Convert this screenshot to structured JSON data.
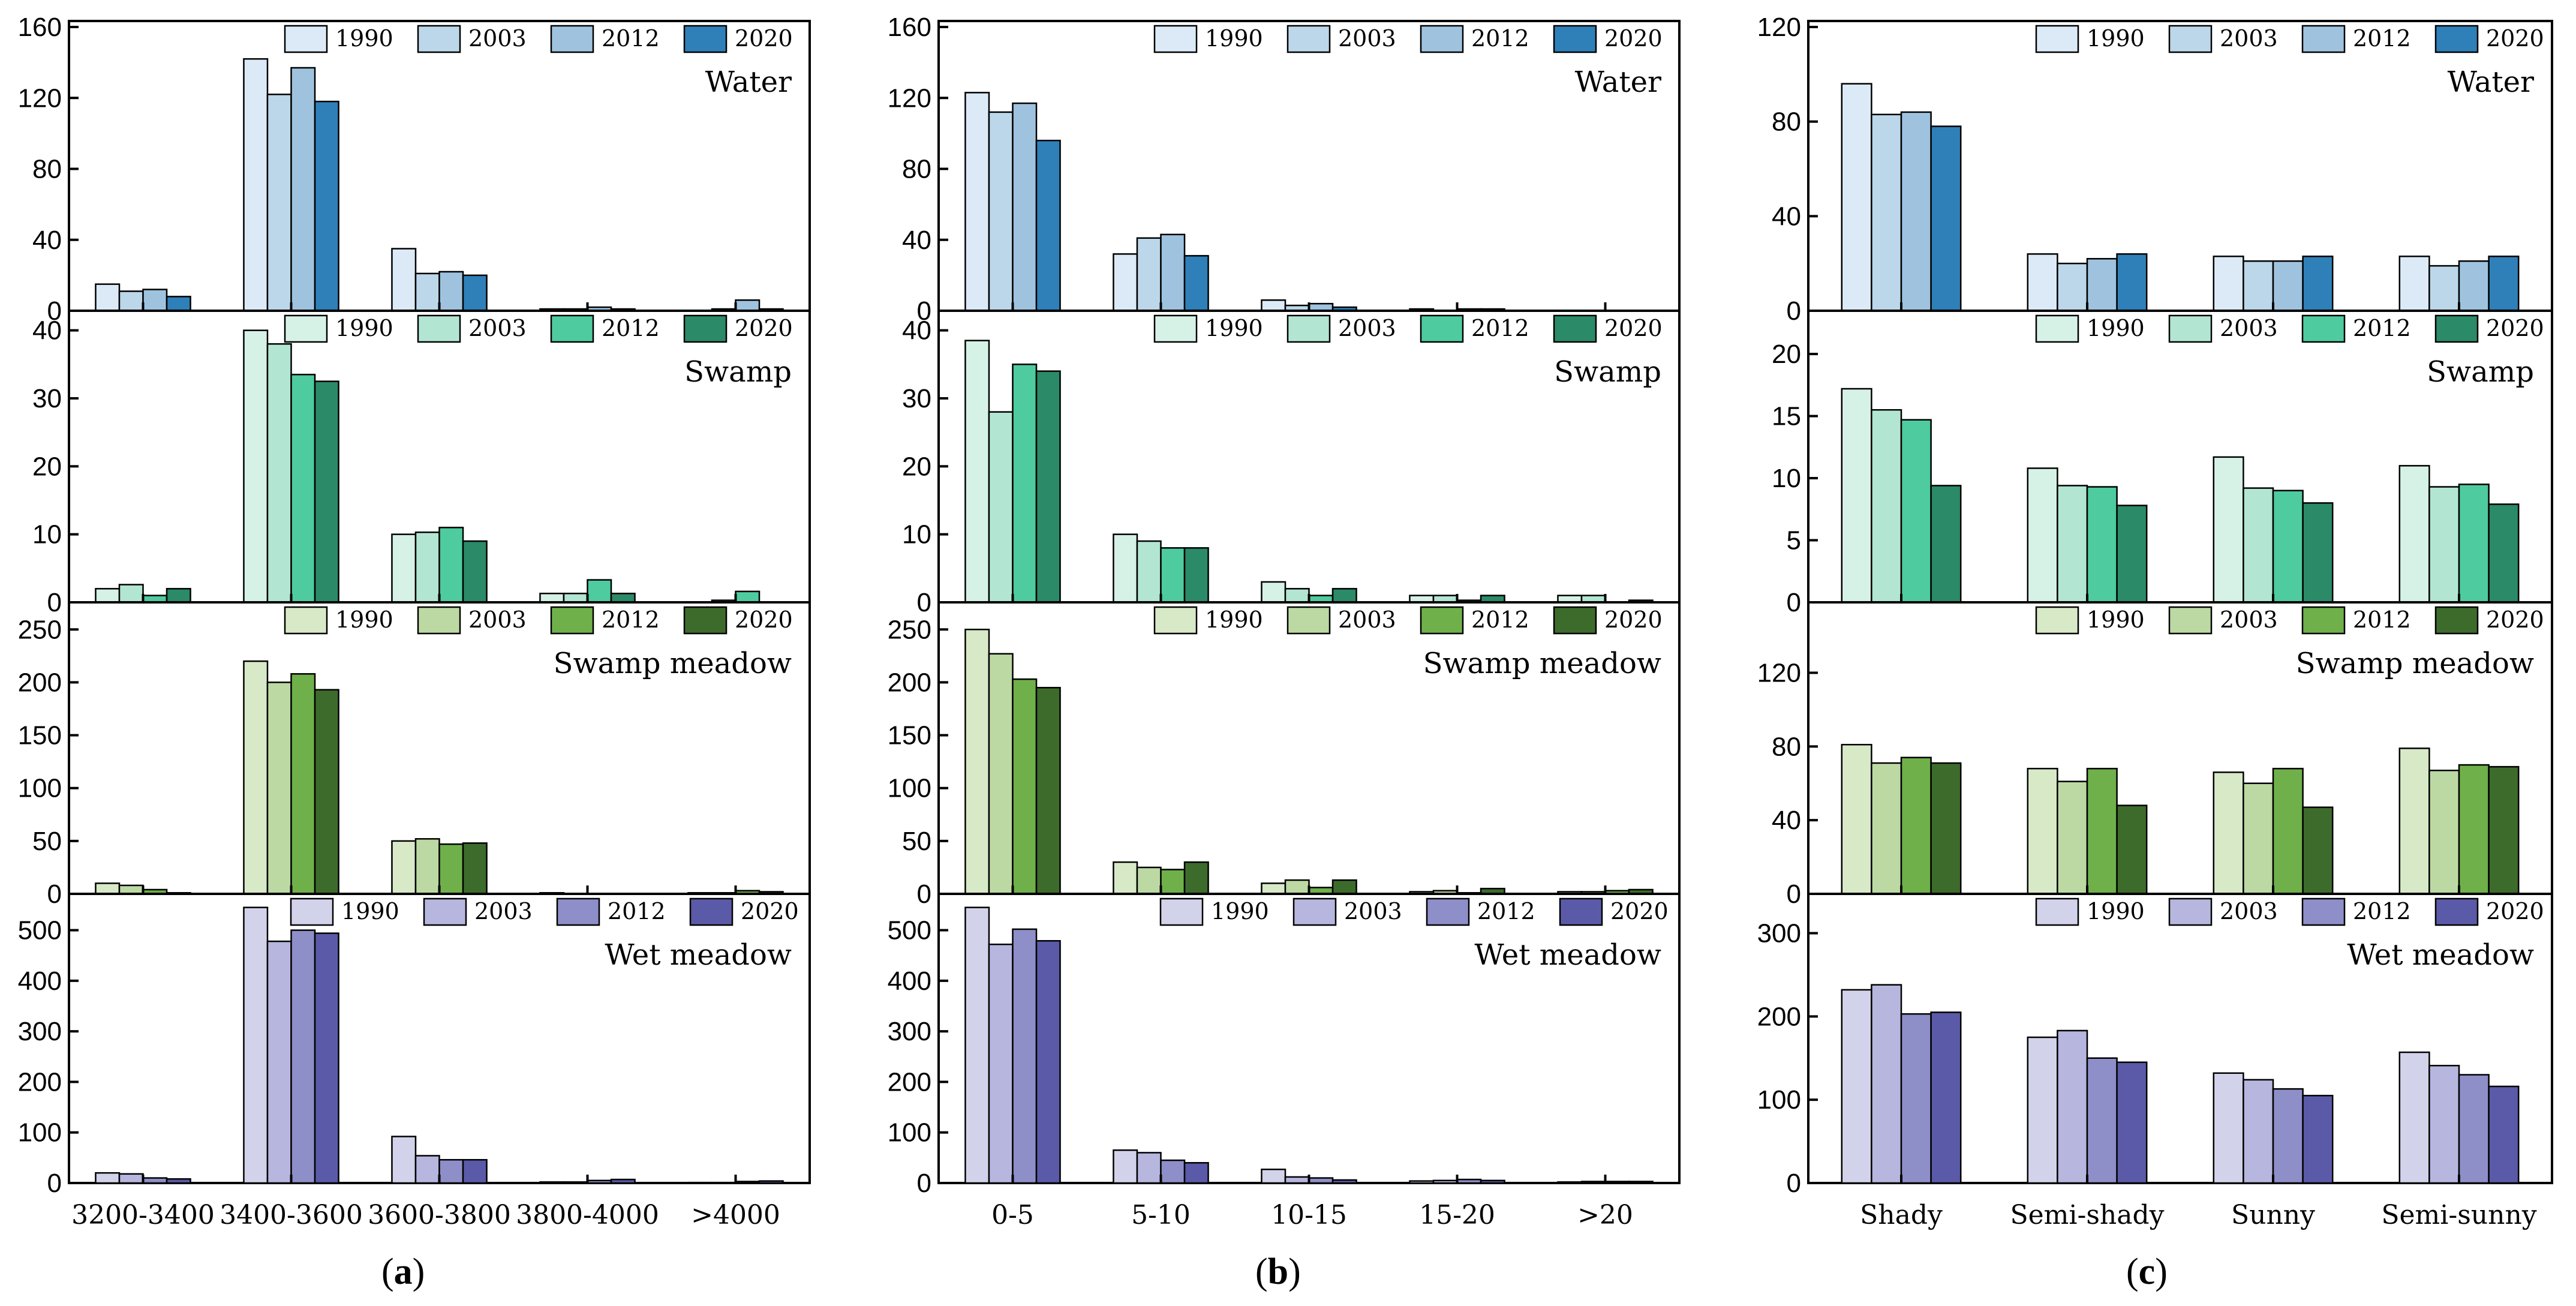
{
  "figure_labels": {
    "a": "a",
    "b": "b",
    "c": "c"
  },
  "colors": {
    "Water": [
      "#dbeaf6",
      "#bcd7ea",
      "#9fc3df",
      "#2f80b8"
    ],
    "Swamp": [
      "#d6f1e6",
      "#b2e6d2",
      "#4ecb9f",
      "#2b8a67"
    ],
    "Swamp meadow": [
      "#d7e9c7",
      "#bcd9a4",
      "#6fb04a",
      "#3d6b2c"
    ],
    "Wet meadow": [
      "#d2d2ea",
      "#b6b6de",
      "#8e8ec8",
      "#5a5aa8"
    ]
  },
  "chart_data": [
    {
      "type": "bar",
      "panel": "a",
      "title": "Water",
      "categories": [
        "3200-3400",
        "3400-3600",
        "3600-3800",
        "3800-4000",
        ">4000"
      ],
      "ylim": [
        0,
        160
      ],
      "yticks": [
        0,
        40,
        80,
        120,
        160
      ],
      "series": [
        {
          "name": "1990",
          "values": [
            15,
            142,
            35,
            1,
            0
          ]
        },
        {
          "name": "2003",
          "values": [
            11,
            122,
            21,
            1,
            1
          ]
        },
        {
          "name": "2012",
          "values": [
            12,
            137,
            22,
            2,
            6
          ]
        },
        {
          "name": "2020",
          "values": [
            8,
            118,
            20,
            1,
            1
          ]
        }
      ]
    },
    {
      "type": "bar",
      "panel": "a",
      "title": "Swamp",
      "categories": [
        "3200-3400",
        "3400-3600",
        "3600-3800",
        "3800-4000",
        ">4000"
      ],
      "ylim": [
        0,
        42
      ],
      "yticks": [
        0,
        10,
        20,
        30,
        40
      ],
      "series": [
        {
          "name": "1990",
          "values": [
            2,
            40,
            10,
            1.3,
            0
          ]
        },
        {
          "name": "2003",
          "values": [
            2.6,
            38,
            10.3,
            1.3,
            0.3
          ]
        },
        {
          "name": "2012",
          "values": [
            1,
            33.5,
            11,
            3.3,
            1.6
          ]
        },
        {
          "name": "2020",
          "values": [
            2,
            32.5,
            9,
            1.3,
            0
          ]
        }
      ]
    },
    {
      "type": "bar",
      "panel": "a",
      "title": "Swamp meadow",
      "categories": [
        "3200-3400",
        "3400-3600",
        "3600-3800",
        "3800-4000",
        ">4000"
      ],
      "ylim": [
        0,
        270
      ],
      "yticks": [
        0,
        50,
        100,
        150,
        200,
        250
      ],
      "series": [
        {
          "name": "1990",
          "values": [
            10,
            220,
            50,
            1,
            1
          ]
        },
        {
          "name": "2003",
          "values": [
            8,
            200,
            52,
            0,
            1
          ]
        },
        {
          "name": "2012",
          "values": [
            4,
            208,
            47,
            0,
            3
          ]
        },
        {
          "name": "2020",
          "values": [
            1,
            193,
            48,
            0,
            2
          ]
        }
      ]
    },
    {
      "type": "bar",
      "panel": "a",
      "title": "Wet meadow",
      "categories": [
        "3200-3400",
        "3400-3600",
        "3600-3800",
        "3800-4000",
        ">4000"
      ],
      "ylim": [
        0,
        560
      ],
      "yticks": [
        0,
        100,
        200,
        300,
        400,
        500
      ],
      "series": [
        {
          "name": "1990",
          "values": [
            20,
            545,
            92,
            2,
            1
          ]
        },
        {
          "name": "2003",
          "values": [
            18,
            478,
            54,
            2,
            1
          ]
        },
        {
          "name": "2012",
          "values": [
            10,
            500,
            46,
            5,
            3
          ]
        },
        {
          "name": "2020",
          "values": [
            8,
            494,
            46,
            7,
            4
          ]
        }
      ]
    },
    {
      "type": "bar",
      "panel": "b",
      "title": "Water",
      "categories": [
        "0-5",
        "5-10",
        "10-15",
        "15-20",
        ">20"
      ],
      "ylim": [
        0,
        160
      ],
      "yticks": [
        0,
        40,
        80,
        120,
        160
      ],
      "series": [
        {
          "name": "1990",
          "values": [
            123,
            32,
            6,
            1,
            0
          ]
        },
        {
          "name": "2003",
          "values": [
            112,
            41,
            3,
            0,
            0
          ]
        },
        {
          "name": "2012",
          "values": [
            117,
            43,
            4,
            1,
            0
          ]
        },
        {
          "name": "2020",
          "values": [
            96,
            31,
            2,
            1,
            0
          ]
        }
      ]
    },
    {
      "type": "bar",
      "panel": "b",
      "title": "Swamp",
      "categories": [
        "0-5",
        "5-10",
        "10-15",
        "15-20",
        ">20"
      ],
      "ylim": [
        0,
        42
      ],
      "yticks": [
        0,
        10,
        20,
        30,
        40
      ],
      "series": [
        {
          "name": "1990",
          "values": [
            38.5,
            10,
            3,
            1,
            1
          ]
        },
        {
          "name": "2003",
          "values": [
            28,
            9,
            2,
            1,
            1
          ]
        },
        {
          "name": "2012",
          "values": [
            35,
            8,
            1,
            0.3,
            0
          ]
        },
        {
          "name": "2020",
          "values": [
            34,
            8,
            2,
            1,
            0.3
          ]
        }
      ]
    },
    {
      "type": "bar",
      "panel": "b",
      "title": "Swamp meadow",
      "categories": [
        "0-5",
        "5-10",
        "10-15",
        "15-20",
        ">20"
      ],
      "ylim": [
        0,
        270
      ],
      "yticks": [
        0,
        50,
        100,
        150,
        200,
        250
      ],
      "series": [
        {
          "name": "1990",
          "values": [
            250,
            30,
            10,
            2,
            2
          ]
        },
        {
          "name": "2003",
          "values": [
            227,
            25,
            13,
            3,
            2
          ]
        },
        {
          "name": "2012",
          "values": [
            203,
            23,
            6,
            1,
            3
          ]
        },
        {
          "name": "2020",
          "values": [
            195,
            30,
            13,
            5,
            4
          ]
        }
      ]
    },
    {
      "type": "bar",
      "panel": "b",
      "title": "Wet meadow",
      "categories": [
        "0-5",
        "5-10",
        "10-15",
        "15-20",
        ">20"
      ],
      "ylim": [
        0,
        560
      ],
      "yticks": [
        0,
        100,
        200,
        300,
        400,
        500
      ],
      "series": [
        {
          "name": "1990",
          "values": [
            545,
            65,
            27,
            4,
            2
          ]
        },
        {
          "name": "2003",
          "values": [
            472,
            60,
            12,
            5,
            3
          ]
        },
        {
          "name": "2012",
          "values": [
            502,
            45,
            10,
            7,
            3
          ]
        },
        {
          "name": "2020",
          "values": [
            479,
            40,
            6,
            5,
            3
          ]
        }
      ]
    },
    {
      "type": "bar",
      "panel": "c",
      "title": "Water",
      "categories": [
        "Shady",
        "Semi-shady",
        "Sunny",
        "Semi-sunny"
      ],
      "ylim": [
        0,
        120
      ],
      "yticks": [
        0,
        40,
        80,
        120
      ],
      "series": [
        {
          "name": "1990",
          "values": [
            96,
            24,
            23,
            23
          ]
        },
        {
          "name": "2003",
          "values": [
            83,
            20,
            21,
            19
          ]
        },
        {
          "name": "2012",
          "values": [
            84,
            22,
            21,
            21
          ]
        },
        {
          "name": "2020",
          "values": [
            78,
            24,
            23,
            23
          ]
        }
      ]
    },
    {
      "type": "bar",
      "panel": "c",
      "title": "Swamp",
      "categories": [
        "Shady",
        "Semi-shady",
        "Sunny",
        "Semi-sunny"
      ],
      "ylim": [
        0,
        23
      ],
      "yticks": [
        0,
        5,
        10,
        15,
        20
      ],
      "series": [
        {
          "name": "1990",
          "values": [
            17.2,
            10.8,
            11.7,
            11
          ]
        },
        {
          "name": "2003",
          "values": [
            15.5,
            9.4,
            9.2,
            9.3
          ]
        },
        {
          "name": "2012",
          "values": [
            14.7,
            9.3,
            9.0,
            9.5
          ]
        },
        {
          "name": "2020",
          "values": [
            9.4,
            7.8,
            8.0,
            7.9
          ]
        }
      ]
    },
    {
      "type": "bar",
      "panel": "c",
      "title": "Swamp meadow",
      "categories": [
        "Shady",
        "Semi-shady",
        "Sunny",
        "Semi-sunny"
      ],
      "ylim": [
        0,
        155
      ],
      "yticks": [
        0,
        40,
        80,
        120
      ],
      "series": [
        {
          "name": "1990",
          "values": [
            81,
            68,
            66,
            79
          ]
        },
        {
          "name": "2003",
          "values": [
            71,
            61,
            60,
            67
          ]
        },
        {
          "name": "2012",
          "values": [
            74,
            68,
            68,
            70
          ]
        },
        {
          "name": "2020",
          "values": [
            71,
            48,
            47,
            69
          ]
        }
      ]
    },
    {
      "type": "bar",
      "panel": "c",
      "title": "Wet meadow",
      "categories": [
        "Shady",
        "Semi-shady",
        "Sunny",
        "Semi-sunny"
      ],
      "ylim": [
        0,
        340
      ],
      "yticks": [
        0,
        100,
        200,
        300
      ],
      "series": [
        {
          "name": "1990",
          "values": [
            232,
            175,
            132,
            157
          ]
        },
        {
          "name": "2003",
          "values": [
            238,
            183,
            124,
            141
          ]
        },
        {
          "name": "2012",
          "values": [
            203,
            150,
            113,
            130
          ]
        },
        {
          "name": "2020",
          "values": [
            205,
            145,
            105,
            116
          ]
        }
      ]
    }
  ]
}
